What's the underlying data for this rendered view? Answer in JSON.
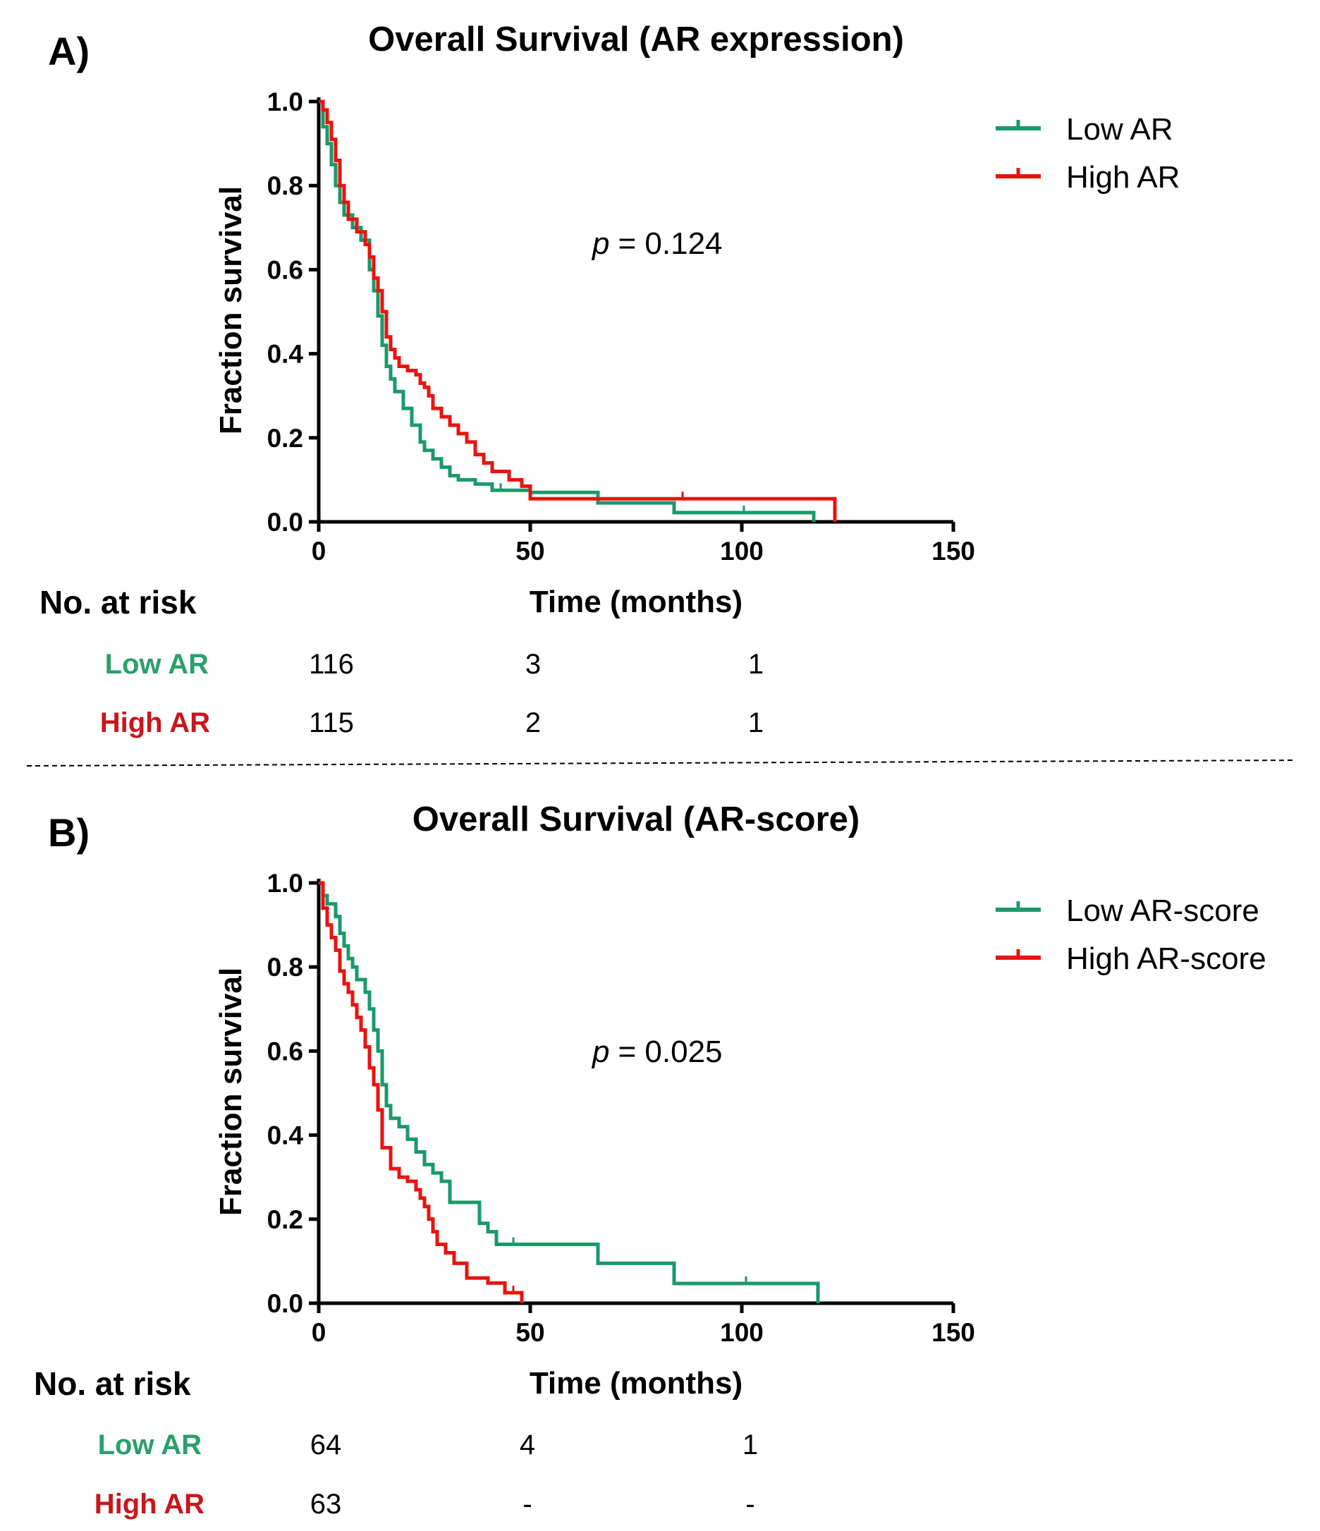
{
  "colors": {
    "low": "#1a9a6a",
    "high": "#e8140f",
    "low_label": "#2aa06a",
    "high_label": "#c9161c"
  },
  "chart_data": [
    {
      "type": "line",
      "panel_label": "A)",
      "title": "Overall Survival (AR expression)",
      "xlabel": "Time (months)",
      "ylabel": "Fraction survival",
      "xlim": [
        0,
        150
      ],
      "ylim": [
        0,
        1.0
      ],
      "x_ticks": [
        "0",
        "50",
        "100",
        "150"
      ],
      "y_ticks": [
        "0.0",
        "0.2",
        "0.4",
        "0.6",
        "0.8",
        "1.0"
      ],
      "grid": false,
      "legend_position": "top-right",
      "annotation_p_symbol": "p",
      "annotation_p_value": "= 0.124",
      "series": [
        {
          "name": "Low AR",
          "color_key": "low",
          "x": [
            0,
            1,
            2,
            3,
            4,
            5,
            6,
            8,
            10,
            12,
            13,
            14,
            15,
            16,
            17,
            18,
            20,
            22,
            24,
            25,
            27,
            29,
            31,
            33,
            37,
            41,
            45,
            50,
            66,
            84,
            117,
            117
          ],
          "y": [
            1.0,
            0.94,
            0.9,
            0.85,
            0.8,
            0.76,
            0.73,
            0.7,
            0.67,
            0.6,
            0.55,
            0.49,
            0.42,
            0.37,
            0.34,
            0.31,
            0.27,
            0.23,
            0.19,
            0.17,
            0.15,
            0.13,
            0.11,
            0.1,
            0.09,
            0.075,
            0.075,
            0.07,
            0.045,
            0.022,
            0.022,
            0.0
          ]
        },
        {
          "name": "High AR",
          "color_key": "high",
          "x": [
            0,
            1,
            2,
            3,
            4,
            5,
            6,
            7,
            9,
            11,
            12,
            13,
            14,
            15,
            16,
            17,
            18,
            19,
            21,
            23,
            24,
            25,
            26,
            27,
            29,
            31,
            33,
            35,
            37,
            39,
            41,
            45,
            48,
            50,
            122,
            122
          ],
          "y": [
            1.0,
            0.98,
            0.95,
            0.91,
            0.86,
            0.8,
            0.76,
            0.72,
            0.69,
            0.66,
            0.63,
            0.58,
            0.55,
            0.5,
            0.44,
            0.41,
            0.39,
            0.37,
            0.36,
            0.35,
            0.33,
            0.32,
            0.3,
            0.27,
            0.25,
            0.23,
            0.21,
            0.19,
            0.16,
            0.14,
            0.12,
            0.1,
            0.085,
            0.055,
            0.055,
            0.0
          ]
        }
      ],
      "at_risk": {
        "heading": "No. at risk",
        "rows": [
          {
            "label": "Low AR",
            "color_key": "low_label",
            "counts": [
              "116",
              "3",
              "1"
            ]
          },
          {
            "label": "High AR",
            "color_key": "high_label",
            "counts": [
              "115",
              "2",
              "1"
            ]
          }
        ]
      }
    },
    {
      "type": "line",
      "panel_label": "B)",
      "title": "Overall Survival (AR-score)",
      "xlabel": "Time (months)",
      "ylabel": "Fraction survival",
      "xlim": [
        0,
        150
      ],
      "ylim": [
        0,
        1.0
      ],
      "x_ticks": [
        "0",
        "50",
        "100",
        "150"
      ],
      "y_ticks": [
        "0.0",
        "0.2",
        "0.4",
        "0.6",
        "0.8",
        "1.0"
      ],
      "grid": false,
      "legend_position": "top-right",
      "annotation_p_symbol": "p",
      "annotation_p_value": "= 0.025",
      "series": [
        {
          "name": "Low AR-score",
          "color_key": "low",
          "x": [
            0,
            1,
            2,
            4,
            5,
            6,
            7,
            8,
            9,
            11,
            12,
            13,
            14,
            15,
            16,
            17,
            19,
            21,
            23,
            25,
            27,
            29,
            31,
            34,
            38,
            40,
            42,
            50,
            66,
            84,
            118,
            118
          ],
          "y": [
            1.0,
            0.97,
            0.95,
            0.92,
            0.88,
            0.85,
            0.82,
            0.8,
            0.77,
            0.74,
            0.7,
            0.65,
            0.6,
            0.52,
            0.47,
            0.44,
            0.42,
            0.39,
            0.36,
            0.33,
            0.31,
            0.29,
            0.24,
            0.24,
            0.19,
            0.17,
            0.14,
            0.14,
            0.095,
            0.047,
            0.047,
            0.0
          ]
        },
        {
          "name": "High AR-score",
          "color_key": "high",
          "x": [
            0,
            1,
            2,
            3,
            4,
            5,
            6,
            7,
            8,
            9,
            10,
            11,
            12,
            13,
            14,
            15,
            17,
            19,
            21,
            23,
            24,
            25,
            26,
            27,
            28,
            30,
            32,
            35,
            40,
            44,
            48,
            48
          ],
          "y": [
            1.0,
            0.94,
            0.9,
            0.87,
            0.84,
            0.79,
            0.76,
            0.74,
            0.71,
            0.68,
            0.65,
            0.61,
            0.56,
            0.52,
            0.46,
            0.37,
            0.32,
            0.3,
            0.29,
            0.27,
            0.25,
            0.23,
            0.2,
            0.17,
            0.14,
            0.12,
            0.095,
            0.06,
            0.048,
            0.025,
            0.025,
            0.0
          ]
        }
      ],
      "at_risk": {
        "heading": "No. at risk",
        "rows": [
          {
            "label": "Low AR",
            "color_key": "low_label",
            "counts": [
              "64",
              "4",
              "1"
            ]
          },
          {
            "label": "High AR",
            "color_key": "high_label",
            "counts": [
              "63",
              "-",
              "-"
            ]
          }
        ]
      }
    }
  ]
}
